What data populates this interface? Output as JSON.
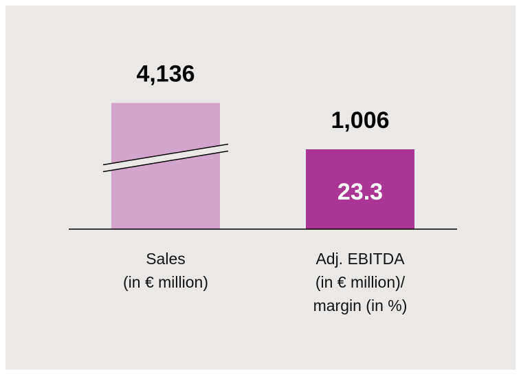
{
  "chart_data": {
    "type": "bar",
    "categories": [
      [
        "Sales",
        "(in € million)"
      ],
      [
        "Adj. EBITDA",
        "(in € million)/",
        "margin (in %)"
      ]
    ],
    "values": [
      4136,
      1006
    ],
    "value_labels": [
      "4,136",
      "1,006"
    ],
    "colors": [
      "#d4a5cc",
      "#ab3594"
    ],
    "annotation": "23.3",
    "broken_bars": [
      true,
      false
    ]
  }
}
